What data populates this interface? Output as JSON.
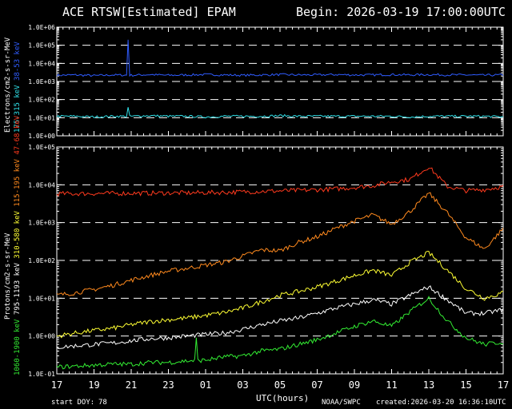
{
  "header": {
    "title": "ACE RTSW[Estimated] EPAM",
    "begin": "Begin: 2026-03-19 17:00:00UTC"
  },
  "footer": {
    "start_doy_label": "start DOY:",
    "start_doy_value": "78",
    "xlabel": "UTC(hours)",
    "source": "NOAA/SWPC",
    "created": "created:2026-03-20 16:36:10UTC"
  },
  "colors": {
    "background": "#000000",
    "axes": "#ffffff",
    "grid": "#ffffff",
    "e_38_53": "#2f5cff",
    "e_175_315": "#30e0e8",
    "p_47_68": "#ff3a1e",
    "p_115_195": "#ff8a1e",
    "p_310_580": "#ffff33",
    "p_795_1193": "#ffffff",
    "p_1060_1900": "#33ee33"
  },
  "chart_data": [
    {
      "type": "line",
      "panel": "electrons",
      "ylabel": "Electrons/cm2-s-sr-MeV",
      "yscale": "log",
      "ylim": [
        1.0,
        1000000.0
      ],
      "ytick_labels": [
        "1.0E+00",
        "1.0E+01",
        "1.0E+02",
        "1.0E+03",
        "1.0E+04",
        "1.0E+05",
        "1.0E+06"
      ],
      "dashed_grid_at": [
        10.0,
        100.0,
        1000.0,
        10000.0,
        100000.0
      ],
      "x_hours_from_begin": [
        0,
        3,
        6,
        9,
        12,
        15,
        18,
        21,
        24,
        27,
        30,
        33,
        36,
        39,
        42,
        45,
        48,
        51,
        54,
        57,
        60,
        63,
        66,
        69,
        72
      ],
      "xtick_labels": [
        "17",
        "19",
        "21",
        "23",
        "01",
        "03",
        "05",
        "07",
        "09",
        "11",
        "13",
        "15",
        "17"
      ],
      "series": [
        {
          "name": "38-53 keV",
          "color_key": "e_38_53",
          "values": [
            2200,
            2300,
            2100,
            2300,
            2200,
            2400,
            2200,
            2300,
            2400,
            2300,
            2200,
            2300,
            2400,
            2300,
            2300,
            2400,
            2300,
            2300,
            2400,
            2300,
            2400,
            2300,
            2300,
            2200,
            2300
          ],
          "spike": {
            "x": 11.6,
            "y": 200000
          }
        },
        {
          "name": "175-315 keV",
          "color_key": "e_175_315",
          "values": [
            12,
            12,
            11,
            12,
            12,
            13,
            12,
            12,
            11,
            12,
            12,
            12,
            13,
            12,
            12,
            12,
            12,
            12,
            12,
            11,
            12,
            12,
            12,
            12,
            11
          ],
          "spike": {
            "x": 11.5,
            "y": 38
          }
        }
      ]
    },
    {
      "type": "line",
      "panel": "protons",
      "ylabel": "Protons/cm2-s-sr-MeV",
      "yscale": "log",
      "ylim": [
        0.1,
        100000.0
      ],
      "ytick_labels": [
        "1.0E-01",
        "1.0E+00",
        "1.0E+01",
        "1.0E+02",
        "1.0E+03",
        "1.0E+04",
        "1.0E+05"
      ],
      "dashed_grid_at": [
        1.0,
        10.0,
        100.0,
        1000.0,
        10000.0
      ],
      "x_hours_from_begin": [
        0,
        3,
        6,
        9,
        12,
        15,
        18,
        21,
        24,
        27,
        30,
        33,
        36,
        39,
        42,
        45,
        48,
        51,
        54,
        57,
        60,
        63,
        66,
        69,
        72
      ],
      "xtick_labels": [
        "17",
        "19",
        "21",
        "23",
        "01",
        "03",
        "05",
        "07",
        "09",
        "11",
        "13",
        "15",
        "17"
      ],
      "series": [
        {
          "name": "47-68 keV",
          "color_key": "p_47_68",
          "values": [
            5800,
            5800,
            5900,
            5900,
            6000,
            6000,
            6100,
            6100,
            6200,
            6300,
            6500,
            6700,
            6900,
            7100,
            7400,
            7800,
            8500,
            9500,
            12000,
            14000,
            30000,
            9000,
            7000,
            7500,
            9000
          ]
        },
        {
          "name": "115-195 keV",
          "color_key": "p_115_195",
          "values": [
            12,
            14,
            17,
            22,
            30,
            40,
            52,
            62,
            75,
            90,
            130,
            190,
            180,
            300,
            420,
            700,
            1100,
            1600,
            900,
            2000,
            6000,
            1800,
            400,
            200,
            700
          ]
        },
        {
          "name": "310-580 keV",
          "color_key": "p_310_580",
          "values": [
            1.0,
            1.2,
            1.4,
            1.6,
            2.0,
            2.4,
            2.7,
            3.0,
            3.5,
            4.2,
            5.5,
            8,
            12,
            15,
            20,
            28,
            40,
            55,
            40,
            90,
            160,
            55,
            18,
            10,
            14
          ]
        },
        {
          "name": "795-1193 keV",
          "color_key": "p_795_1193",
          "values": [
            0.5,
            0.55,
            0.6,
            0.65,
            0.75,
            0.85,
            0.9,
            1.0,
            1.1,
            1.2,
            1.5,
            2.0,
            2.5,
            3.0,
            4.0,
            5.5,
            7,
            9,
            7,
            12,
            20,
            9,
            4,
            4,
            5
          ]
        },
        {
          "name": "1060-1900 keV",
          "color_key": "p_1060_1900",
          "values": [
            0.15,
            0.16,
            0.17,
            0.18,
            0.18,
            0.2,
            0.2,
            0.22,
            0.23,
            0.28,
            0.3,
            0.4,
            0.45,
            0.6,
            0.8,
            1.2,
            1.8,
            2.5,
            1.8,
            4.5,
            10,
            2.5,
            0.9,
            0.6,
            0.7
          ],
          "spike": {
            "x": 22.5,
            "y": 0.9
          }
        }
      ]
    }
  ]
}
